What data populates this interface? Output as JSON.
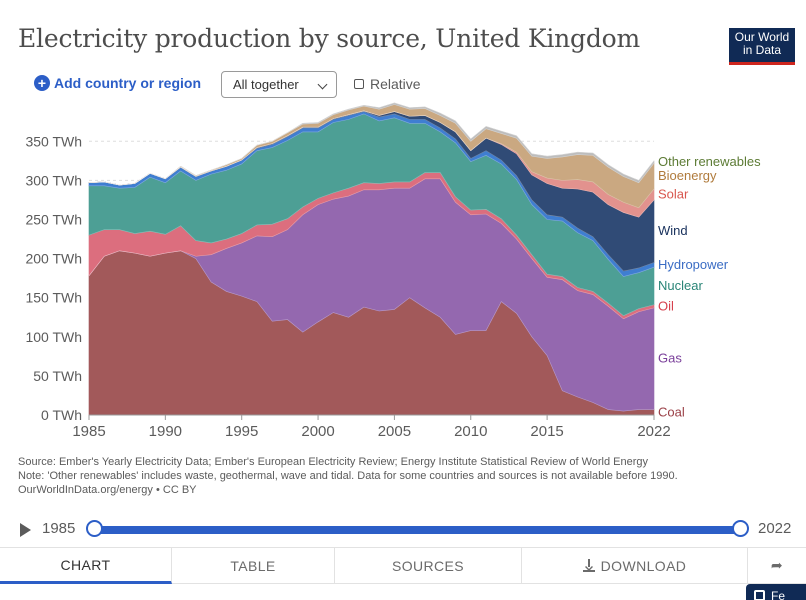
{
  "header": {
    "title": "Electricity production by source, United Kingdom",
    "logo_line1": "Our World",
    "logo_line2": "in Data"
  },
  "controls": {
    "add_country": "Add country or region",
    "stack_mode": "All together",
    "relative_label": "Relative"
  },
  "footer": {
    "source_line": "Source: Ember's Yearly Electricity Data; Ember's European Electricity Review; Energy Institute Statistical Review of World Energy",
    "note_line": "Note: 'Other renewables' includes waste, geothermal, wave and tidal. Data for some countries and sources is not available before 1990.",
    "license_line": "OurWorldInData.org/energy • CC BY"
  },
  "timeline": {
    "start": "1985",
    "end": "2022"
  },
  "tabs": {
    "chart": "CHART",
    "table": "TABLE",
    "sources": "SOURCES",
    "download": "DOWNLOAD"
  },
  "fab_label": "Fe",
  "chart_data": {
    "type": "area",
    "stacked": true,
    "x": [
      1985,
      1986,
      1987,
      1988,
      1989,
      1990,
      1991,
      1992,
      1993,
      1994,
      1995,
      1996,
      1997,
      1998,
      1999,
      2000,
      2001,
      2002,
      2003,
      2004,
      2005,
      2006,
      2007,
      2008,
      2009,
      2010,
      2011,
      2012,
      2013,
      2014,
      2015,
      2016,
      2017,
      2018,
      2019,
      2020,
      2021,
      2022
    ],
    "ylim": [
      0,
      390
    ],
    "y_ticks": [
      0,
      50,
      100,
      150,
      200,
      250,
      300,
      350
    ],
    "y_tick_unit": "TWh",
    "x_ticks": [
      1985,
      1990,
      1995,
      2000,
      2005,
      2010,
      2015,
      2022
    ],
    "grid": "horizontal dashed",
    "legend": "right, labels at series ends",
    "series": [
      {
        "name": "Coal",
        "color": "#a2595a",
        "values": [
          178,
          203,
          210,
          207,
          203,
          207,
          210,
          200,
          170,
          158,
          152,
          145,
          120,
          122,
          106,
          119,
          131,
          125,
          138,
          133,
          135,
          150,
          137,
          125,
          103,
          108,
          108,
          145,
          130,
          100,
          76,
          31,
          23,
          16,
          7,
          5,
          7,
          7
        ]
      },
      {
        "name": "Gas",
        "color": "#9468af",
        "values": [
          0,
          0,
          0,
          0,
          0,
          0,
          0,
          3,
          35,
          55,
          68,
          84,
          108,
          115,
          150,
          150,
          145,
          155,
          150,
          155,
          155,
          140,
          165,
          177,
          169,
          148,
          149,
          100,
          95,
          100,
          100,
          142,
          136,
          138,
          132,
          118,
          125,
          130
        ]
      },
      {
        "name": "Oil",
        "color": "#dc6e7e",
        "values": [
          52,
          34,
          27,
          25,
          32,
          24,
          32,
          20,
          15,
          12,
          12,
          14,
          16,
          14,
          10,
          8,
          8,
          10,
          9,
          8,
          8,
          8,
          8,
          8,
          7,
          6,
          6,
          6,
          5,
          5,
          4,
          4,
          4,
          4,
          4,
          4,
          4,
          4
        ]
      },
      {
        "name": "Nuclear",
        "color": "#4d9f95",
        "values": [
          63,
          56,
          53,
          59,
          69,
          66,
          70,
          77,
          88,
          88,
          89,
          95,
          98,
          100,
          96,
          85,
          90,
          88,
          88,
          80,
          82,
          75,
          63,
          52,
          69,
          62,
          69,
          70,
          71,
          64,
          70,
          71,
          70,
          65,
          56,
          50,
          46,
          48
        ]
      },
      {
        "name": "Hydropower",
        "color": "#3f7ed1",
        "values": [
          4,
          5,
          4,
          5,
          5,
          5,
          5,
          5,
          4,
          5,
          5,
          3,
          4,
          5,
          5,
          5,
          4,
          5,
          3,
          5,
          5,
          5,
          5,
          5,
          5,
          4,
          6,
          5,
          5,
          6,
          6,
          5,
          6,
          5,
          6,
          7,
          6,
          6
        ]
      },
      {
        "name": "Wind",
        "color": "#304b76",
        "values": [
          0,
          0,
          0,
          0,
          0,
          0,
          0,
          0,
          0,
          0,
          0,
          1,
          1,
          1,
          1,
          1,
          1,
          1,
          1,
          2,
          3,
          4,
          5,
          7,
          9,
          10,
          16,
          20,
          28,
          32,
          40,
          37,
          50,
          57,
          64,
          75,
          65,
          80
        ]
      },
      {
        "name": "Solar",
        "color": "#e2928e",
        "values": [
          0,
          0,
          0,
          0,
          0,
          0,
          0,
          0,
          0,
          0,
          0,
          0,
          0,
          0,
          0,
          0,
          0,
          0,
          0,
          0,
          0,
          0,
          0,
          0,
          0,
          0,
          0,
          1,
          2,
          4,
          7,
          10,
          12,
          13,
          13,
          13,
          12,
          14
        ]
      },
      {
        "name": "Bioenergy",
        "color": "#caa881",
        "values": [
          0,
          0,
          0,
          0,
          0,
          0,
          1,
          1,
          1,
          2,
          2,
          3,
          3,
          4,
          4,
          5,
          5,
          6,
          6,
          8,
          9,
          9,
          9,
          9,
          11,
          12,
          12,
          13,
          18,
          20,
          25,
          30,
          32,
          34,
          35,
          33,
          32,
          33
        ]
      },
      {
        "name": "Other renewables",
        "color": "#bdbdbd",
        "values": [
          0,
          0,
          0,
          0,
          0,
          0,
          0,
          0,
          0,
          0,
          0,
          0,
          0,
          0,
          1,
          1,
          1,
          1,
          1,
          2,
          2,
          2,
          2,
          3,
          3,
          3,
          3,
          3,
          3,
          3,
          3,
          3,
          3,
          3,
          3,
          3,
          3,
          3
        ]
      }
    ],
    "legend_colors": {
      "Coal": "#9a3f46",
      "Gas": "#7a3f9a",
      "Oil": "#d6404d",
      "Nuclear": "#2a8577",
      "Hydropower": "#3a6cc4",
      "Wind": "#17305c",
      "Solar": "#d8564e",
      "Bioenergy": "#b07b3c",
      "Other renewables": "#5c7b34"
    }
  }
}
